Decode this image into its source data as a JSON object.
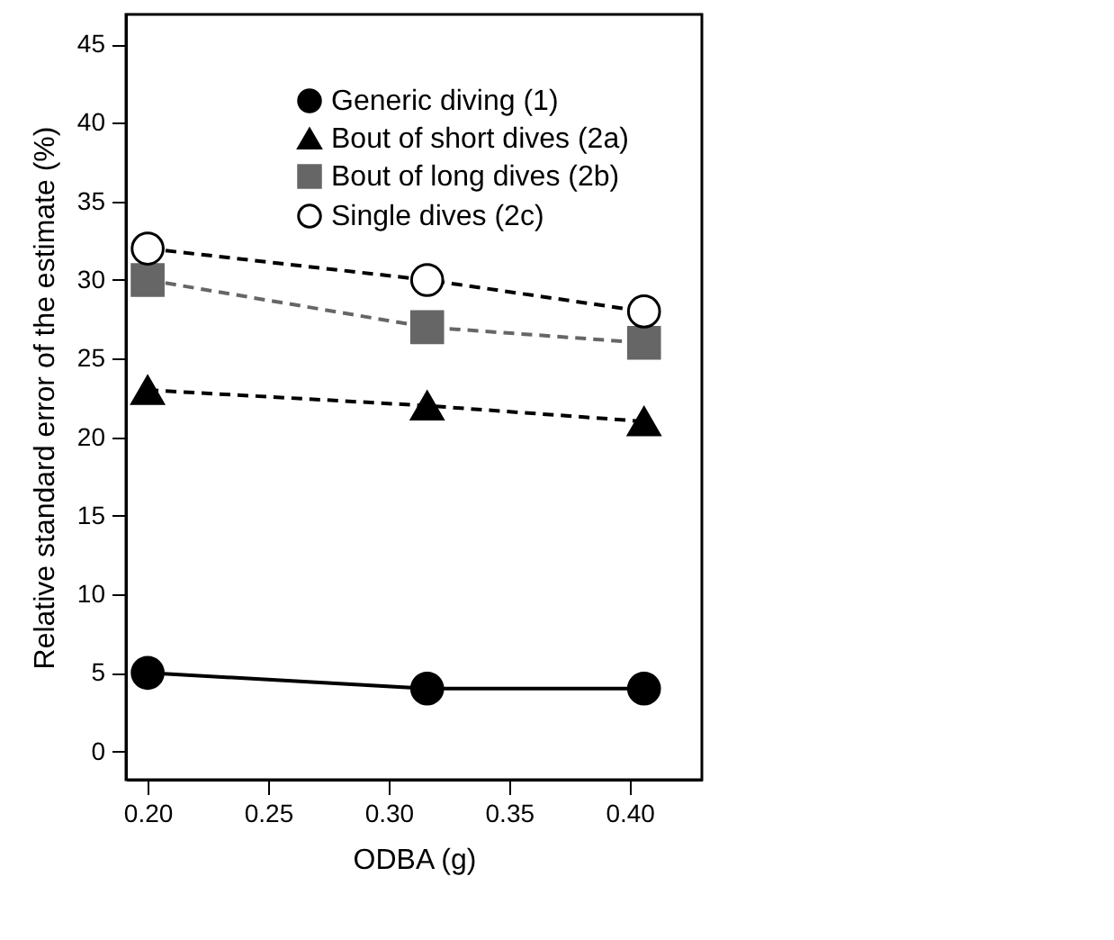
{
  "chart_data": {
    "type": "line",
    "xlabel": "ODBA (g)",
    "ylabel": "Relative standard error of the estimate (%)",
    "x": [
      0.2,
      0.316,
      0.406
    ],
    "series": [
      {
        "name": "Generic diving (1)",
        "color": "#000000",
        "marker": "circle",
        "line_style": "solid",
        "values": [
          5,
          4,
          4
        ]
      },
      {
        "name": "Bout of short dives (2a)",
        "color": "#000000",
        "marker": "triangle",
        "line_style": "dashed",
        "values": [
          23,
          22,
          21
        ]
      },
      {
        "name": "Bout of long dives (2b)",
        "color": "#666666",
        "marker": "square",
        "line_style": "dashed",
        "values": [
          30,
          27,
          26
        ]
      },
      {
        "name": "Single dives (2c)",
        "color": "#000000",
        "marker": "circle",
        "line_style": "dashed",
        "values": [
          32,
          30,
          28
        ]
      }
    ],
    "xlim": [
      0.191,
      0.43
    ],
    "xticks": [
      {
        "value": 0.2,
        "label": "0.20"
      },
      {
        "value": 0.25,
        "label": "0.25"
      },
      {
        "value": 0.3,
        "label": "0.30"
      },
      {
        "value": 0.35,
        "label": "0.35"
      },
      {
        "value": 0.4,
        "label": "0.40"
      }
    ],
    "ylim": [
      -1.8,
      46.9
    ],
    "yticks": [
      0,
      5,
      10,
      15,
      20,
      25,
      30,
      35,
      40,
      45
    ],
    "grid": false,
    "legend": "top right"
  }
}
